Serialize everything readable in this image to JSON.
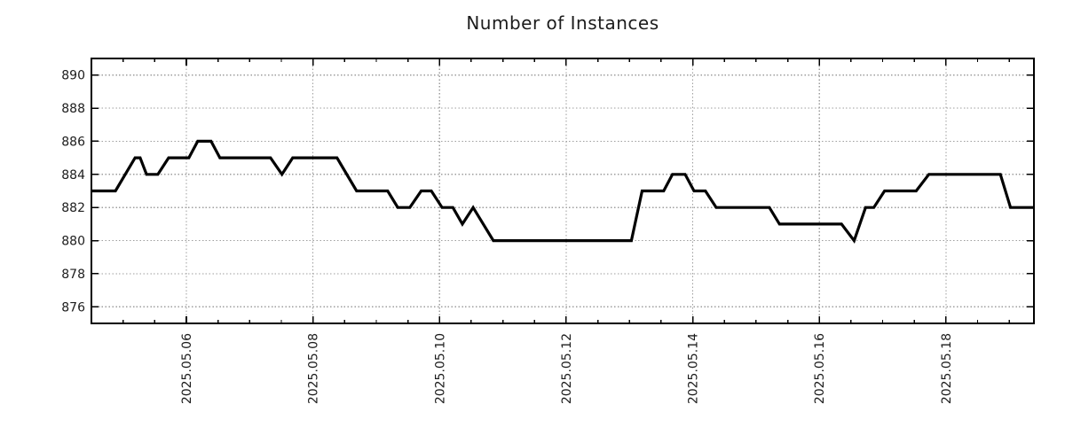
{
  "title": "Number of Instances",
  "chart_data": {
    "type": "line",
    "title": "Number of Instances",
    "x_axis": {
      "kind": "date",
      "range": [
        0.5,
        15.39
      ],
      "major_ticks": [
        {
          "pos": 2,
          "label": "2025.05.06"
        },
        {
          "pos": 4,
          "label": "2025.05.08"
        },
        {
          "pos": 6,
          "label": "2025.05.10"
        },
        {
          "pos": 8,
          "label": "2025.05.12"
        },
        {
          "pos": 10,
          "label": "2025.05.14"
        },
        {
          "pos": 12,
          "label": "2025.05.16"
        },
        {
          "pos": 14,
          "label": "2025.05.18"
        }
      ],
      "minor_tick_step": 0.5,
      "label_rotation_deg": -90
    },
    "y_axis": {
      "range": [
        875,
        891
      ],
      "ticks": [
        876,
        878,
        880,
        882,
        884,
        886,
        888,
        890
      ]
    },
    "grid": "dotted",
    "legend": "none",
    "colors": {
      "line": "#000000",
      "grid": "#9e9e9e",
      "border": "#000000",
      "text": "#1c1c1c",
      "background": "#ffffff"
    },
    "series": [
      {
        "name": "Number of Instances",
        "points": [
          [
            0.5,
            883
          ],
          [
            0.88,
            883
          ],
          [
            1.19,
            885
          ],
          [
            1.27,
            885
          ],
          [
            1.37,
            884
          ],
          [
            1.55,
            884
          ],
          [
            1.72,
            885
          ],
          [
            2.04,
            885
          ],
          [
            2.18,
            886
          ],
          [
            2.39,
            886
          ],
          [
            2.53,
            885
          ],
          [
            3.33,
            885
          ],
          [
            3.51,
            884
          ],
          [
            3.68,
            885
          ],
          [
            4.38,
            885
          ],
          [
            4.69,
            883
          ],
          [
            5.18,
            883
          ],
          [
            5.34,
            882
          ],
          [
            5.53,
            882
          ],
          [
            5.71,
            883
          ],
          [
            5.87,
            883
          ],
          [
            6.04,
            882
          ],
          [
            6.21,
            882
          ],
          [
            6.36,
            881
          ],
          [
            6.53,
            882
          ],
          [
            6.85,
            880
          ],
          [
            9.03,
            880
          ],
          [
            9.2,
            883
          ],
          [
            9.54,
            883
          ],
          [
            9.68,
            884
          ],
          [
            9.88,
            884
          ],
          [
            10.02,
            883
          ],
          [
            10.2,
            883
          ],
          [
            10.37,
            882
          ],
          [
            11.21,
            882
          ],
          [
            11.37,
            881
          ],
          [
            12.35,
            881
          ],
          [
            12.55,
            880
          ],
          [
            12.73,
            882
          ],
          [
            12.86,
            882
          ],
          [
            13.03,
            883
          ],
          [
            13.53,
            883
          ],
          [
            13.73,
            884
          ],
          [
            14.86,
            884
          ],
          [
            15.02,
            882
          ],
          [
            15.39,
            882
          ]
        ]
      }
    ]
  }
}
